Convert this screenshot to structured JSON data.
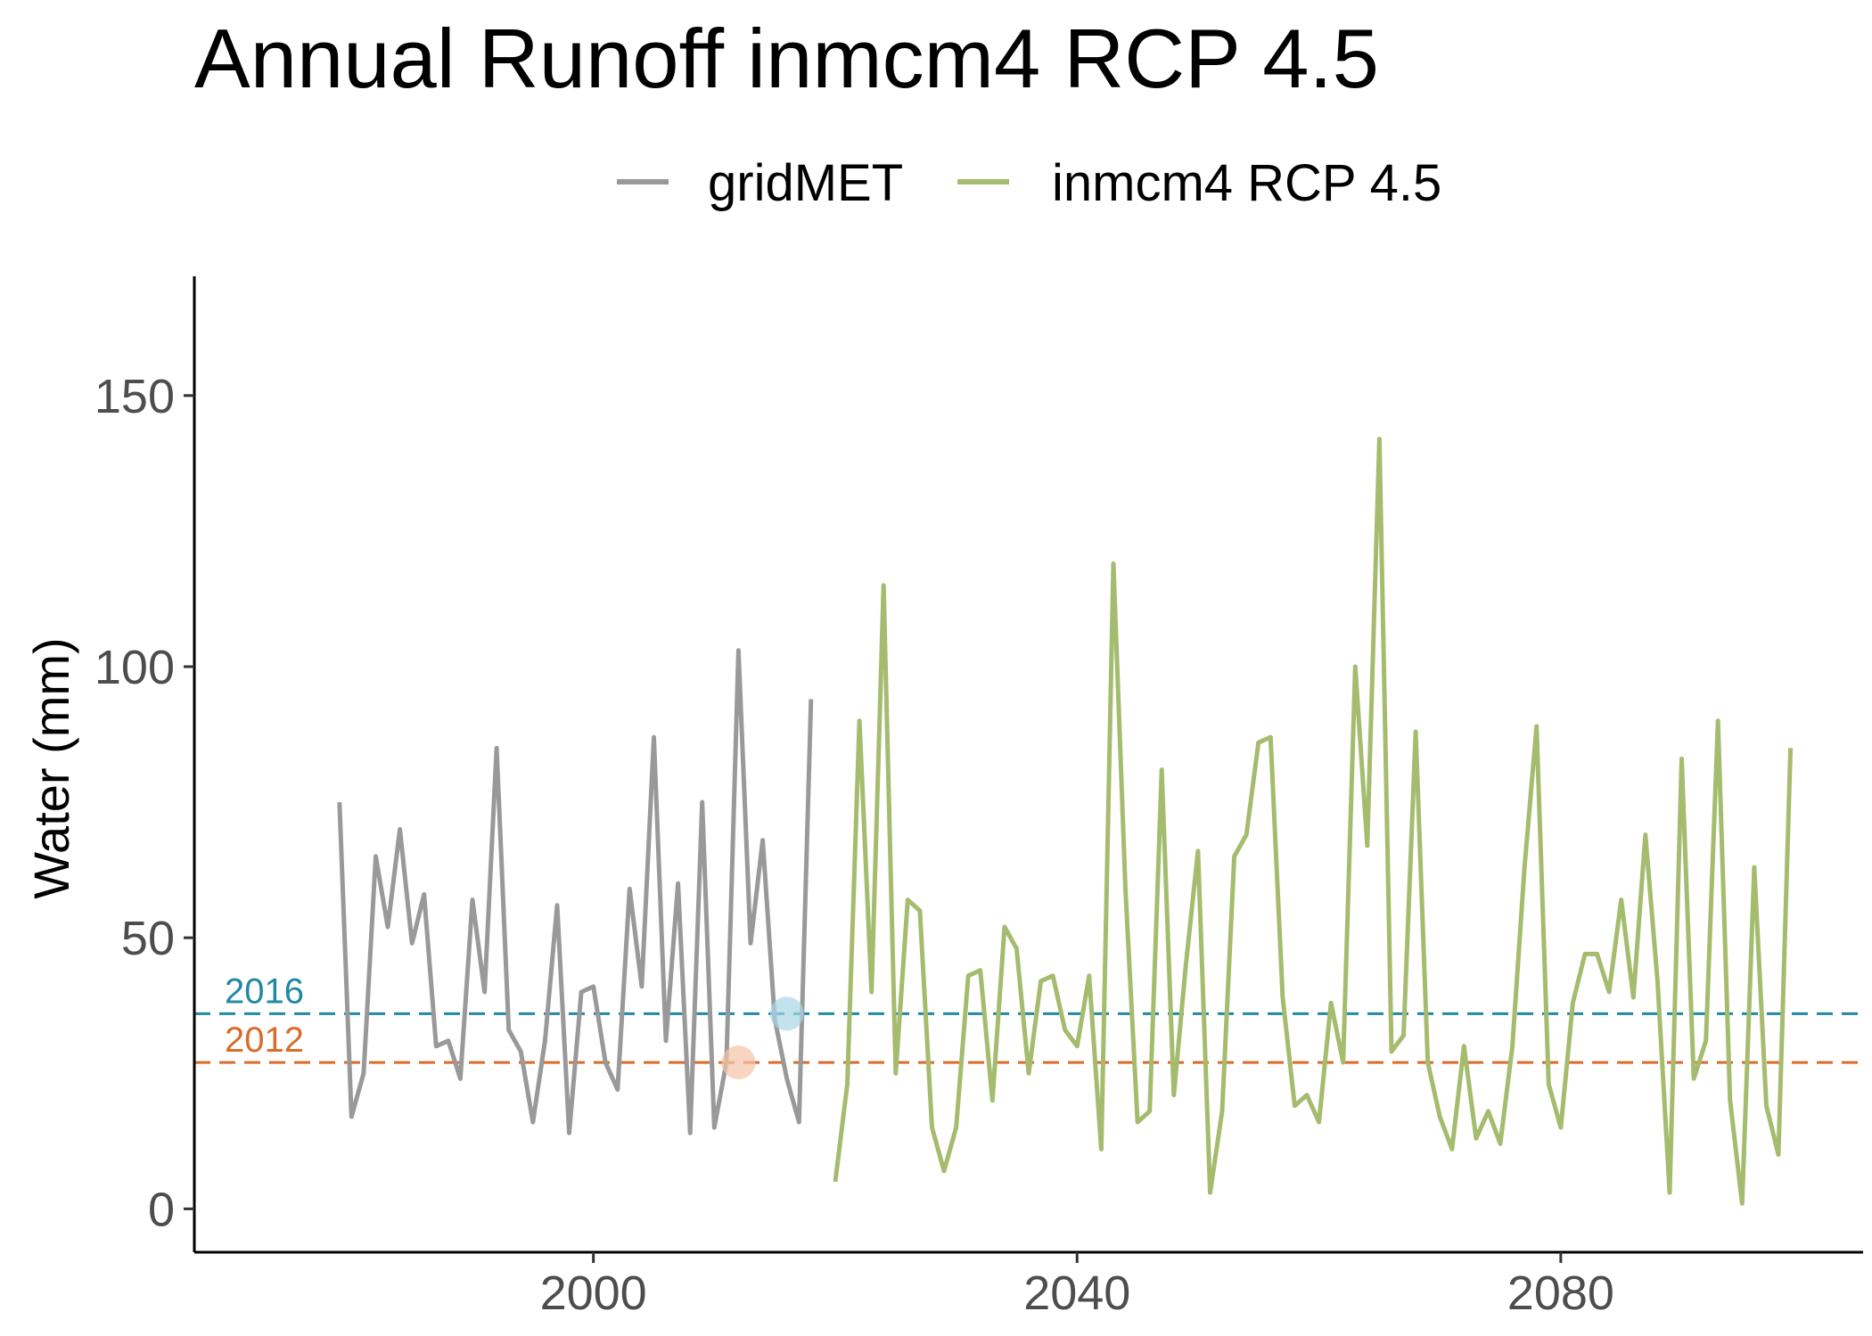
{
  "chart_data": {
    "type": "line",
    "title": "Annual Runoff inmcm4 RCP 4.5",
    "xlabel": "",
    "ylabel": "Water (mm)",
    "xlim": [
      1967,
      2105
    ],
    "ylim": [
      -8,
      172
    ],
    "x_ticks": [
      2000,
      2040,
      2080
    ],
    "x_tick_labels": [
      "2000",
      "2040",
      "2080"
    ],
    "y_ticks": [
      0,
      50,
      100,
      150
    ],
    "y_tick_labels": [
      "0",
      "50",
      "100",
      "150"
    ],
    "grid": false,
    "legend_position": "top",
    "series": [
      {
        "name": "gridMET",
        "color": "#999999",
        "x": [
          1979,
          1980,
          1981,
          1982,
          1983,
          1984,
          1985,
          1986,
          1987,
          1988,
          1989,
          1990,
          1991,
          1992,
          1993,
          1994,
          1995,
          1996,
          1997,
          1998,
          1999,
          2000,
          2001,
          2002,
          2003,
          2004,
          2005,
          2006,
          2007,
          2008,
          2009,
          2010,
          2011,
          2012,
          2013,
          2014,
          2015,
          2016,
          2017,
          2018
        ],
        "y": [
          75,
          17,
          25,
          65,
          52,
          70,
          49,
          58,
          30,
          31,
          24,
          57,
          40,
          85,
          33,
          29,
          16,
          31,
          56,
          14,
          40,
          41,
          27,
          22,
          59,
          41,
          87,
          31,
          60,
          14,
          75,
          15,
          27,
          103,
          49,
          68,
          35,
          24,
          16,
          94
        ]
      },
      {
        "name": "inmcm4 RCP 4.5",
        "color": "#a5bb6e",
        "x": [
          2020,
          2021,
          2022,
          2023,
          2024,
          2025,
          2026,
          2027,
          2028,
          2029,
          2030,
          2031,
          2032,
          2033,
          2034,
          2035,
          2036,
          2037,
          2038,
          2039,
          2040,
          2041,
          2042,
          2043,
          2044,
          2045,
          2046,
          2047,
          2048,
          2049,
          2050,
          2051,
          2052,
          2053,
          2054,
          2055,
          2056,
          2057,
          2058,
          2059,
          2060,
          2061,
          2062,
          2063,
          2064,
          2065,
          2066,
          2067,
          2068,
          2069,
          2070,
          2071,
          2072,
          2073,
          2074,
          2075,
          2076,
          2077,
          2078,
          2079,
          2080,
          2081,
          2082,
          2083,
          2084,
          2085,
          2086,
          2087,
          2088,
          2089,
          2090,
          2091,
          2092,
          2093,
          2094,
          2095,
          2096,
          2097,
          2098,
          2099
        ],
        "y": [
          5,
          23,
          90,
          40,
          115,
          25,
          57,
          55,
          15,
          7,
          15,
          43,
          44,
          20,
          52,
          48,
          25,
          42,
          43,
          33,
          30,
          43,
          11,
          119,
          59,
          16,
          18,
          81,
          21,
          45,
          66,
          3,
          18,
          65,
          69,
          86,
          87,
          39,
          19,
          21,
          16,
          38,
          27,
          100,
          67,
          142,
          29,
          32,
          88,
          27,
          17,
          11,
          30,
          13,
          18,
          12,
          30,
          63,
          89,
          23,
          15,
          38,
          47,
          47,
          40,
          57,
          39,
          69,
          42,
          3,
          83,
          24,
          31,
          90,
          20,
          1,
          63,
          19,
          10,
          85
        ]
      }
    ],
    "reference_lines": [
      {
        "label": "2016",
        "value": 36,
        "year": 2016,
        "color": "#2288a3",
        "marker_color": "#a8d5e6"
      },
      {
        "label": "2012",
        "value": 27,
        "year": 2012,
        "color": "#d96b2b",
        "marker_color": "#f5c3a6"
      }
    ]
  }
}
